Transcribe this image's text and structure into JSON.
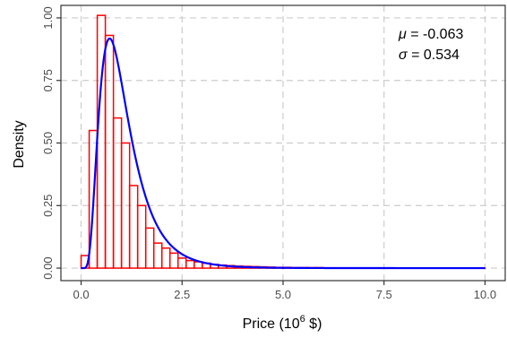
{
  "chart_data": {
    "type": "bar",
    "title": "",
    "xlabel": {
      "base": "Price (10",
      "sup": "6",
      "tail": " $)"
    },
    "ylabel": "Density",
    "xlim": [
      -0.5,
      10.5
    ],
    "ylim": [
      -0.05,
      1.05
    ],
    "x_ticks": [
      {
        "value": 0.0,
        "label": "0.0"
      },
      {
        "value": 2.5,
        "label": "2.5"
      },
      {
        "value": 5.0,
        "label": "5.0"
      },
      {
        "value": 7.5,
        "label": "7.5"
      },
      {
        "value": 10.0,
        "label": "10.0"
      }
    ],
    "y_ticks": [
      {
        "value": 0.0,
        "label": "0.00"
      },
      {
        "value": 0.25,
        "label": "0.25"
      },
      {
        "value": 0.5,
        "label": "0.50"
      },
      {
        "value": 0.75,
        "label": "0.75"
      },
      {
        "value": 1.0,
        "label": "1.00"
      }
    ],
    "grid": true,
    "bin_width": 0.2,
    "histogram": {
      "bin_starts": [
        0.0,
        0.2,
        0.4,
        0.6,
        0.8,
        1.0,
        1.2,
        1.4,
        1.6,
        1.8,
        2.0,
        2.2,
        2.4,
        2.6,
        2.8,
        3.0,
        3.2,
        3.4,
        3.6,
        3.8,
        4.0,
        4.2,
        4.4,
        4.6,
        4.8,
        5.0,
        5.2,
        5.4,
        5.6,
        5.8,
        6.0,
        6.2,
        6.4,
        6.6,
        6.8,
        7.0,
        7.2,
        7.4,
        7.6,
        7.8,
        8.0,
        8.2,
        8.4,
        8.6,
        8.8,
        9.0,
        9.2,
        9.4,
        9.6,
        9.8
      ],
      "density": [
        0.05,
        0.55,
        1.01,
        0.93,
        0.6,
        0.5,
        0.33,
        0.25,
        0.16,
        0.1,
        0.08,
        0.06,
        0.04,
        0.03,
        0.025,
        0.02,
        0.015,
        0.012,
        0.01,
        0.008,
        0.007,
        0.006,
        0.005,
        0.004,
        0.003,
        0.003,
        0.002,
        0.002,
        0.002,
        0.002,
        0.001,
        0.001,
        0.001,
        0.001,
        0.001,
        0.001,
        0.0,
        0.0,
        0.0,
        0.0,
        0.0,
        0.0,
        0.0,
        0.0,
        0.0,
        0.0,
        0.0,
        0.0,
        0.0,
        0.0
      ],
      "color": "#ff0000"
    },
    "fit": {
      "distribution": "lognormal",
      "mu": -0.063,
      "sigma": 0.534,
      "color": "#0000ff"
    },
    "annotations": [
      {
        "symbol": "μ",
        "text": " = -0.063"
      },
      {
        "symbol": "σ",
        "text": " = 0.534"
      }
    ],
    "colors": {
      "grid": "#cccccc",
      "panel_border": "#333333",
      "axis_text": "#4d4d4d"
    }
  }
}
